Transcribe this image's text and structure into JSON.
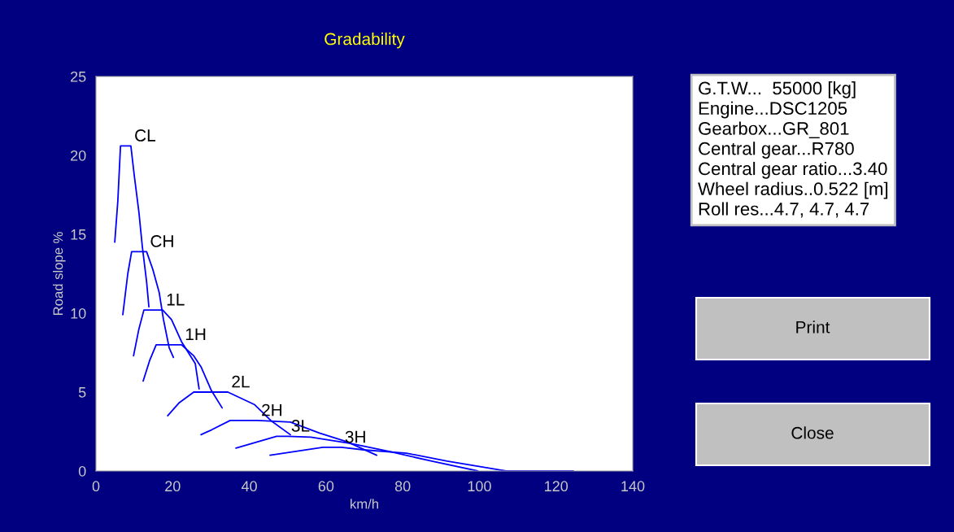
{
  "chart_data": {
    "type": "line",
    "title": "Gradability",
    "xlabel": "km/h",
    "ylabel": "Road slope %",
    "xlim": [
      0,
      140
    ],
    "xticks": [
      0,
      20,
      40,
      60,
      80,
      100,
      120,
      140
    ],
    "ylim": [
      0,
      25
    ],
    "yticks": [
      0,
      5,
      10,
      15,
      20,
      25
    ],
    "grid": false,
    "legend": false,
    "marker": "none",
    "line_style": "solid",
    "series": [
      {
        "name": "CL",
        "color": "#0000ff",
        "x": [
          4.9,
          5.7,
          6.4,
          9.1,
          10,
          11.2,
          12.1,
          13.2,
          13.8
        ],
        "values": [
          14.5,
          17.1,
          20.6,
          20.6,
          18.7,
          16.4,
          14.2,
          12.0,
          10.4
        ]
      },
      {
        "name": "CH",
        "color": "#0000ff",
        "x": [
          7.0,
          8.3,
          9.3,
          13.2,
          14.8,
          16.5,
          17.6,
          19.1,
          20.2
        ],
        "values": [
          9.9,
          12.5,
          13.9,
          13.9,
          12.8,
          11.3,
          9.6,
          7.8,
          7.2
        ]
      },
      {
        "name": "1L",
        "color": "#0000ff",
        "x": [
          9.8,
          11.2,
          12.5,
          17.4,
          19.7,
          22.3,
          25.9,
          26.9
        ],
        "values": [
          7.3,
          9.0,
          10.2,
          10.2,
          9.6,
          8.2,
          6.8,
          5.2
        ]
      },
      {
        "name": "1H",
        "color": "#0000ff",
        "x": [
          12.3,
          14.0,
          15.7,
          22.3,
          25.5,
          27.4,
          30.1,
          32.9
        ],
        "values": [
          5.7,
          7.0,
          8.0,
          8.0,
          7.3,
          6.6,
          5.1,
          4.0
        ]
      },
      {
        "name": "2L",
        "color": "#0000ff",
        "x": [
          18.7,
          21.6,
          25.5,
          34.4,
          41.4,
          45.6,
          50.7
        ],
        "values": [
          3.5,
          4.3,
          5.0,
          5.0,
          4.2,
          3.2,
          2.3
        ]
      },
      {
        "name": "2H",
        "color": "#0000ff",
        "x": [
          27.4,
          30.1,
          35.0,
          42.2,
          50.7,
          58.3,
          65.5,
          73.2
        ],
        "values": [
          2.3,
          2.6,
          3.2,
          3.2,
          3.1,
          2.4,
          1.85,
          1.0
        ]
      },
      {
        "name": "3L",
        "color": "#0000ff",
        "x": [
          36.5,
          47.1,
          50.0,
          56.0,
          66.4,
          76.4,
          87.6,
          99.6
        ],
        "values": [
          1.45,
          2.2,
          2.2,
          2.15,
          1.75,
          1.24,
          0.62,
          0
        ]
      },
      {
        "name": "3H",
        "color": "#0000ff",
        "x": [
          45.4,
          59.2,
          64.0,
          69.8,
          81.0,
          91.6,
          105.9,
          107.0,
          124.5
        ],
        "values": [
          1.0,
          1.5,
          1.5,
          1.34,
          1.13,
          0.62,
          0.05,
          0,
          0
        ]
      }
    ],
    "annotations": [
      "G.T.W...  55000 [kg]\nEngine...DSC1205\nGearbox...GR_801\nCentral gear...R780\nCentral gear ratio...3.40\nWheel radius..0.522 [m]\nRoll res...4.7, 4.7, 4.7",
      "Print",
      "Close"
    ]
  }
}
